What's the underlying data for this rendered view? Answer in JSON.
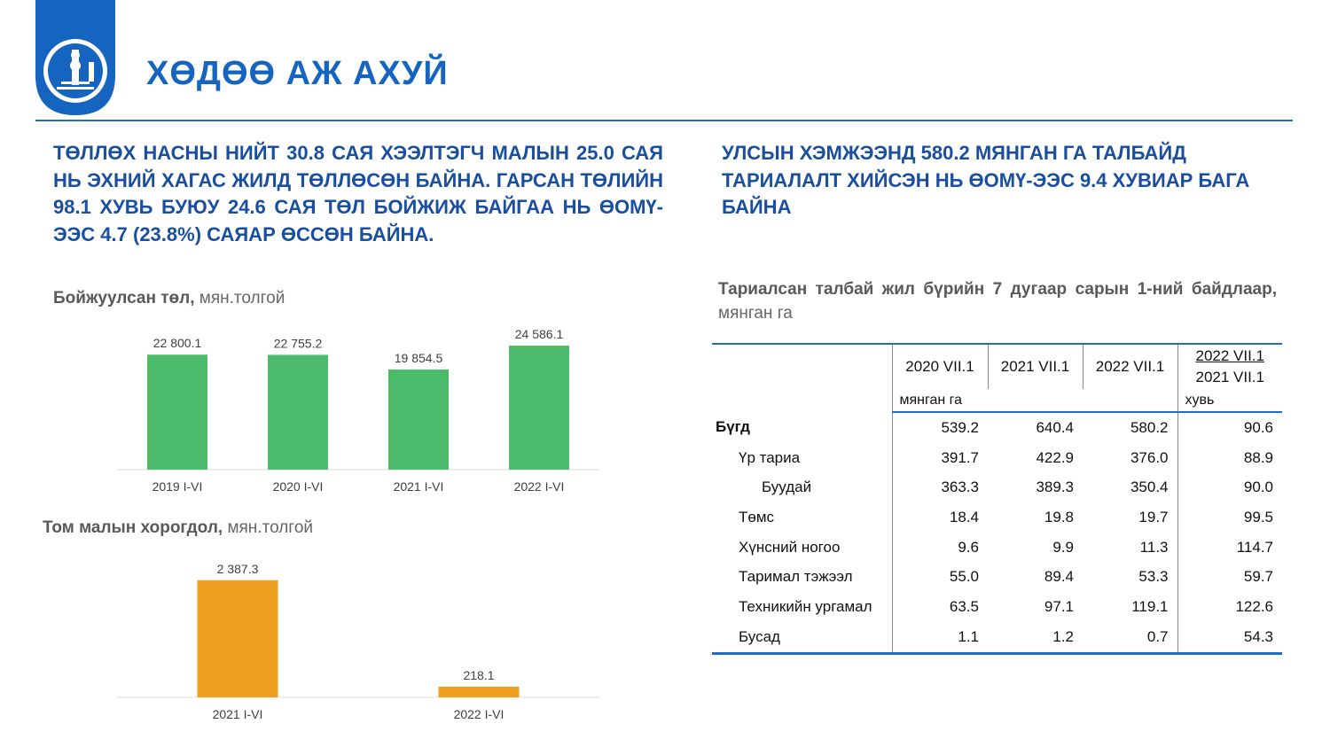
{
  "page_title": "ХӨДӨӨ АЖ АХУЙ",
  "colors": {
    "accent": "#1565C0",
    "headline": "#1A4FA0",
    "bar_green": "#4CBB6C",
    "bar_orange": "#F0A020",
    "rule": "#1E6FBF"
  },
  "headline_left": "ТӨЛЛӨХ НАСНЫ НИЙТ 30.8 САЯ ХЭЭЛТЭГЧ МАЛЫН 25.0 САЯ НЬ ЭХНИЙ ХАГАС ЖИЛД ТӨЛЛӨСӨН БАЙНА. ГАРСАН ТӨЛИЙН 98.1 ХУВЬ БУЮУ 24.6 САЯ ТӨЛ БОЙЖИЖ БАЙГАА НЬ ӨОМҮ-ЭЭС 4.7 (23.8%) САЯАР ӨССӨН БАЙНА.",
  "headline_right": "УЛСЫН ХЭМЖЭЭНД 580.2 МЯНГАН ГА ТАЛБАЙД ТАРИАЛАЛТ ХИЙСЭН НЬ ӨОМҮ-ЭЭС 9.4 ХУВИАР БАГА БАЙНА",
  "chart_data": [
    {
      "type": "bar",
      "title": "Бойжуулсан төл",
      "unit": "мян.толгой",
      "categories": [
        "2019 I-VI",
        "2020 I-VI",
        "2021 I-VI",
        "2022 I-VI"
      ],
      "values": [
        22800.1,
        22755.2,
        19854.5,
        24586.1
      ],
      "value_labels": [
        "22 800.1",
        "22 755.2",
        "19 854.5",
        "24 586.1"
      ],
      "color": "#4CBB6C",
      "ylim": [
        0,
        26000
      ],
      "grid": false
    },
    {
      "type": "bar",
      "title": "Том малын хорогдол",
      "unit": "мян.толгой",
      "categories": [
        "2021 I-VI",
        "2022 I-VI"
      ],
      "values": [
        2387.3,
        218.1
      ],
      "value_labels": [
        "2 387.3",
        "218.1"
      ],
      "color": "#F0A020",
      "ylim": [
        0,
        2600
      ],
      "grid": false
    }
  ],
  "table": {
    "caption_bold": "Тариалсан талбай жил бүрийн 7 дугаар сарын 1-ний байдлаар,",
    "caption_unit": "мянган га",
    "headers": [
      "2020 VII.1",
      "2021 VII.1",
      "2022 VII.1"
    ],
    "ratio_header_top": "2022 VII.1",
    "ratio_header_bottom": "2021 VII.1",
    "unit_left": "мянган га",
    "unit_right": "хувь",
    "rows": [
      {
        "label": "Бүгд",
        "values": [
          "539.2",
          "640.4",
          "580.2",
          "90.6"
        ]
      },
      {
        "label": "Үр тариа",
        "values": [
          "391.7",
          "422.9",
          "376.0",
          "88.9"
        ]
      },
      {
        "label": "Буудай",
        "values": [
          "363.3",
          "389.3",
          "350.4",
          "90.0"
        ]
      },
      {
        "label": "Төмс",
        "values": [
          "18.4",
          "19.8",
          "19.7",
          "99.5"
        ]
      },
      {
        "label": "Хүнсний ногоо",
        "values": [
          "9.6",
          "9.9",
          "11.3",
          "114.7"
        ]
      },
      {
        "label": "Таримал тэжээл",
        "values": [
          "55.0",
          "89.4",
          "53.3",
          "59.7"
        ]
      },
      {
        "label": "Техникийн ургамал",
        "values": [
          "63.5",
          "97.1",
          "119.1",
          "122.6"
        ]
      },
      {
        "label": "Бусад",
        "values": [
          "1.1",
          "1.2",
          "0.7",
          "54.3"
        ]
      }
    ]
  }
}
